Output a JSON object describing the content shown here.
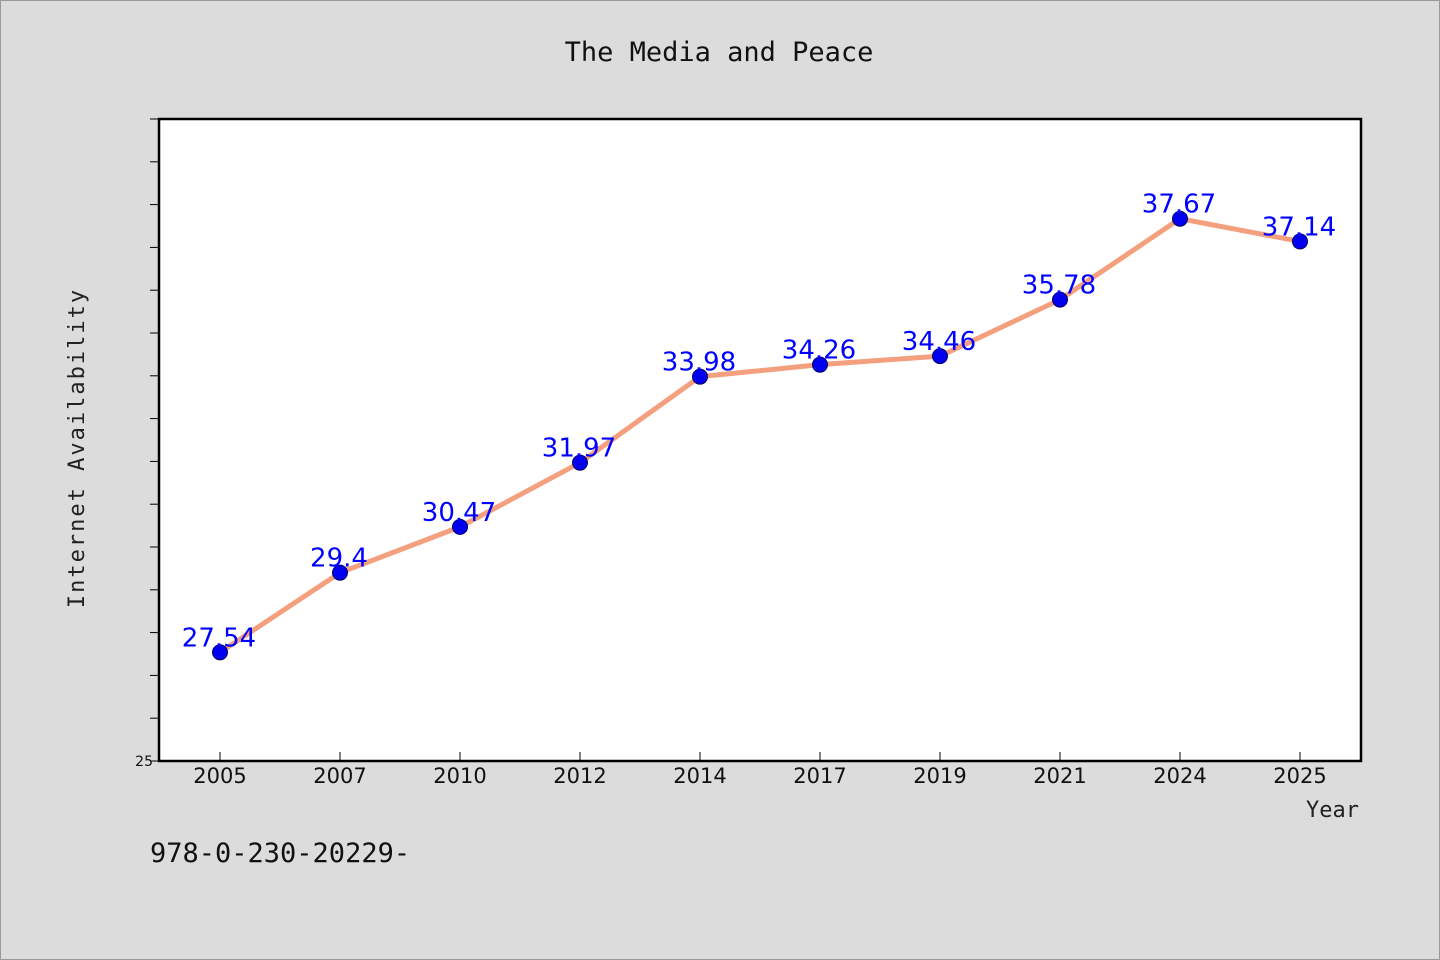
{
  "chart_data": {
    "type": "line",
    "title": "The Media and Peace",
    "xlabel": "Year",
    "ylabel": "Internet Availability",
    "categories": [
      "2005",
      "2007",
      "2010",
      "2012",
      "2014",
      "2017",
      "2019",
      "2021",
      "2024",
      "2025"
    ],
    "series": [
      {
        "values": [
          27.54,
          29.4,
          30.47,
          31.97,
          33.98,
          34.26,
          34.46,
          35.78,
          37.67,
          37.14
        ],
        "line_color": "#f4a07e",
        "marker_color": "#0000ee"
      }
    ],
    "ylim": [
      25,
      40
    ],
    "yticks_labeled": [
      "25"
    ],
    "grid": false,
    "data_label_color": "#0000ff"
  },
  "footer": {
    "text": "978-0-230-20229-"
  }
}
